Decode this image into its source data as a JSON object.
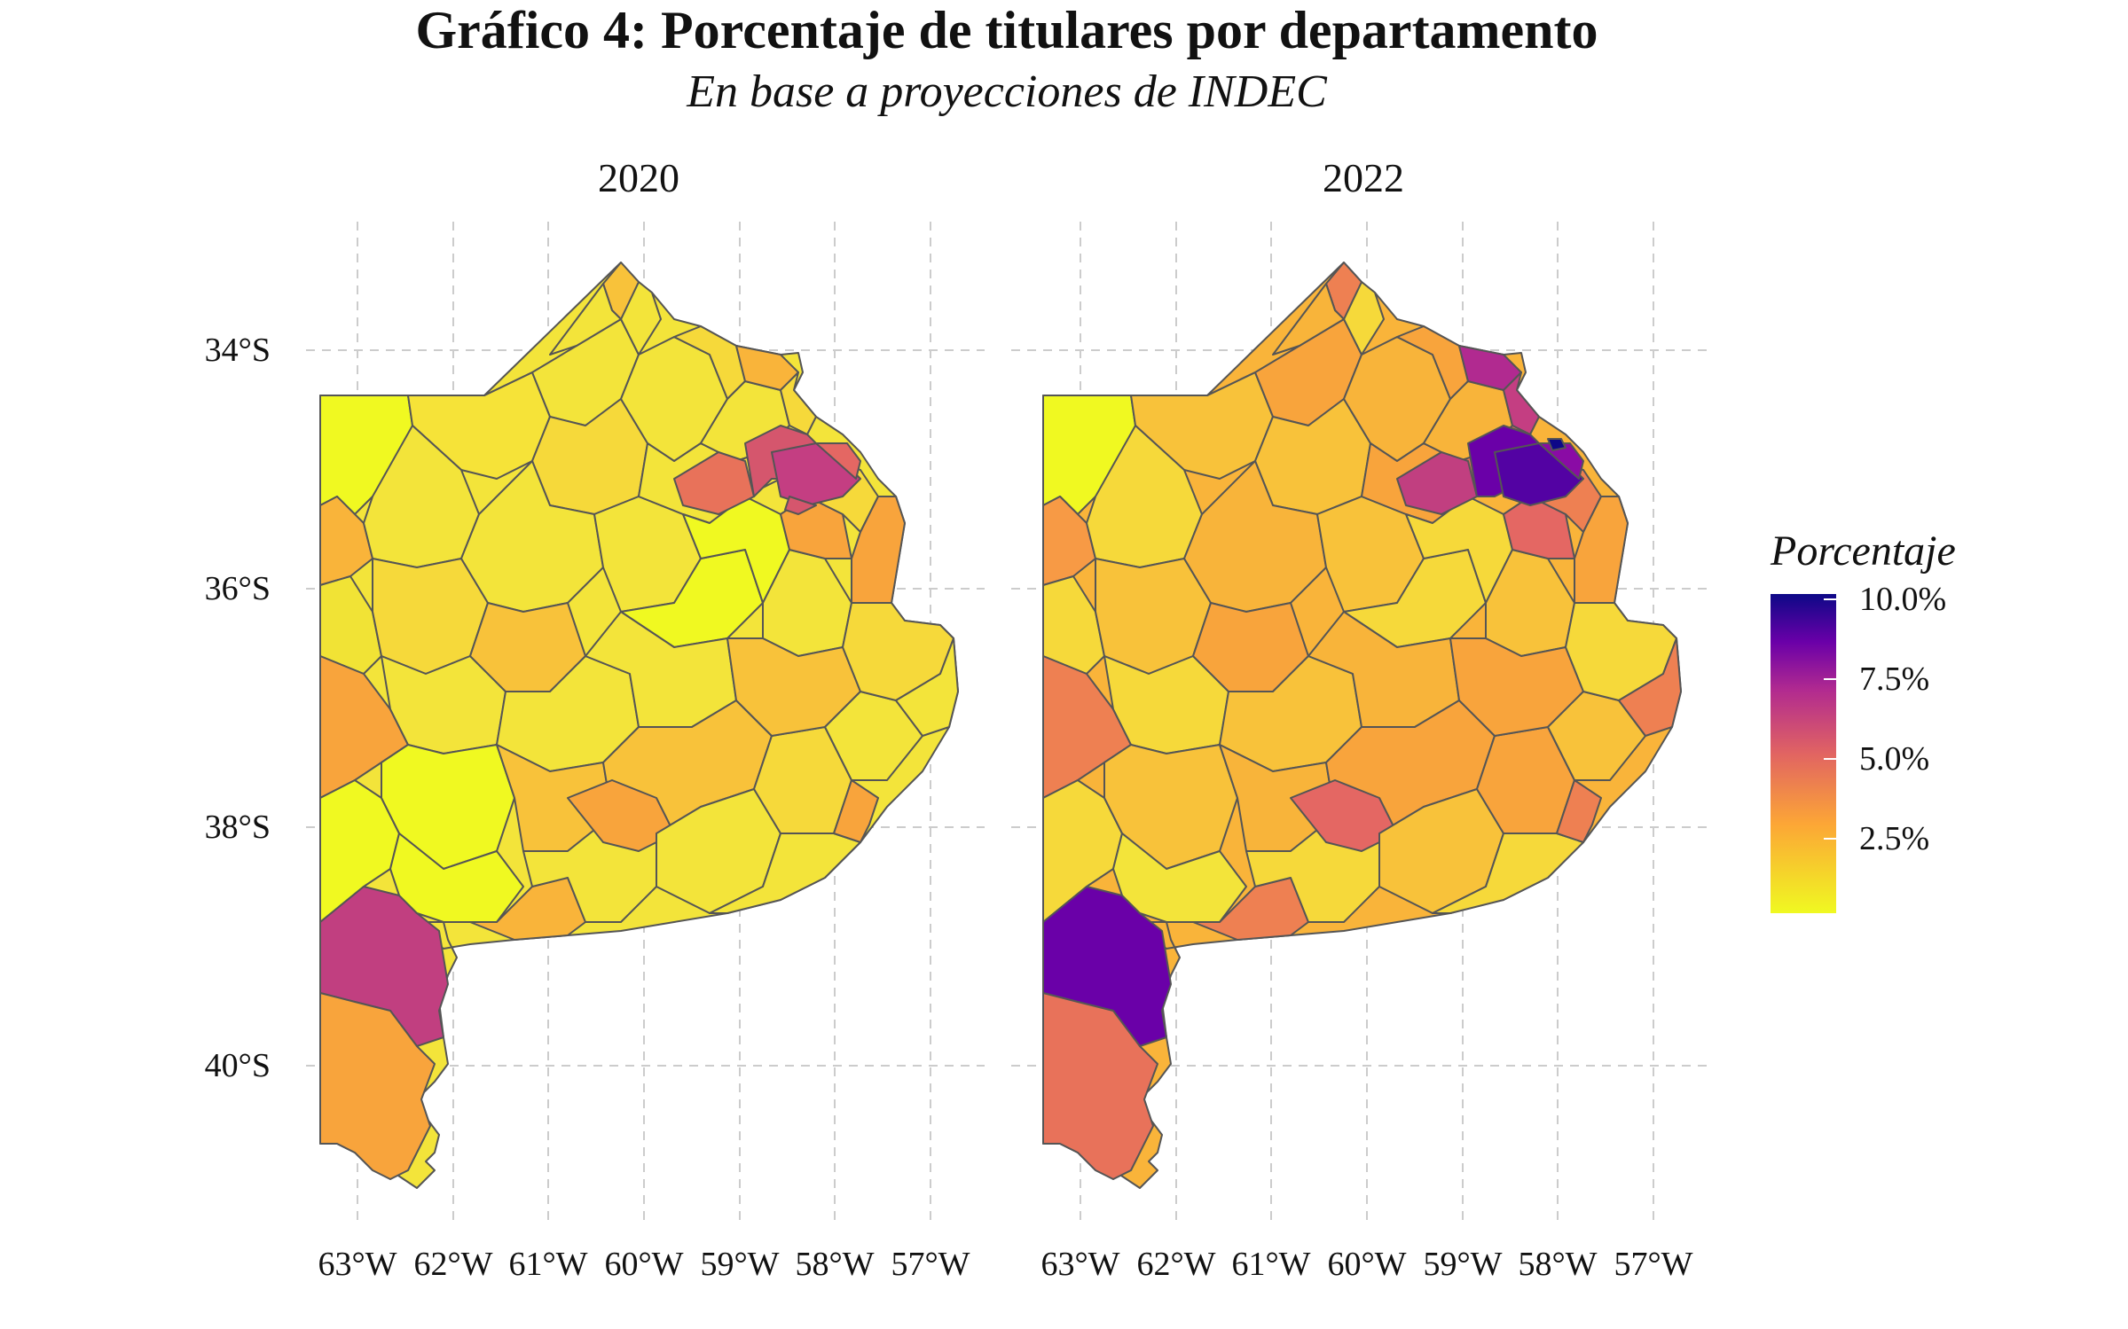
{
  "title": "Gráfico 4: Porcentaje de titulares por departamento",
  "subtitle": "En base a proyecciones de INDEC",
  "facets": [
    "2020",
    "2022"
  ],
  "axes": {
    "y_ticks": [
      "34°S",
      "36°S",
      "38°S",
      "40°S"
    ],
    "x_ticks": [
      "63°W",
      "62°W",
      "61°W",
      "60°W",
      "59°W",
      "58°W",
      "57°W"
    ]
  },
  "legend": {
    "title": "Porcentaje",
    "labels": [
      "10.0%",
      "7.5%",
      "5.0%",
      "2.5%"
    ],
    "scale": "plasma (reversed)"
  },
  "colors": {
    "low": "#f0f921",
    "mid_low": "#fca636",
    "mid": "#e16462",
    "mid_high": "#b12a90",
    "high": "#6a00a8",
    "max": "#0d0887",
    "border": "#555555",
    "grid": "#cccccc"
  }
}
